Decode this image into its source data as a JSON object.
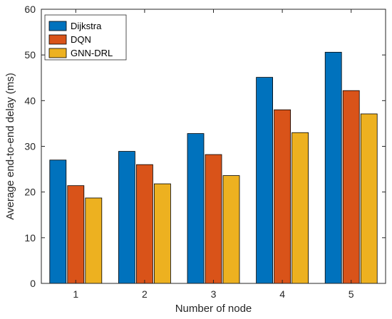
{
  "chart_data": {
    "type": "bar",
    "categories": [
      "1",
      "2",
      "3",
      "4",
      "5"
    ],
    "series": [
      {
        "name": "Dijkstra",
        "values": [
          27.0,
          28.9,
          32.8,
          45.1,
          50.6
        ],
        "color": "#0072BD"
      },
      {
        "name": "DQN",
        "values": [
          21.4,
          26.0,
          28.2,
          38.0,
          42.2
        ],
        "color": "#D95319"
      },
      {
        "name": "GNN-DRL",
        "values": [
          18.7,
          21.8,
          23.6,
          33.0,
          37.1
        ],
        "color": "#EDB120"
      }
    ],
    "title": "",
    "xlabel": "Number of node",
    "ylabel": "Average end-to-end delay (ms)",
    "ylim": [
      0,
      60
    ],
    "yticks": [
      "0",
      "10",
      "20",
      "30",
      "40",
      "50",
      "60"
    ],
    "grid": false,
    "legend_position": "top-left"
  }
}
